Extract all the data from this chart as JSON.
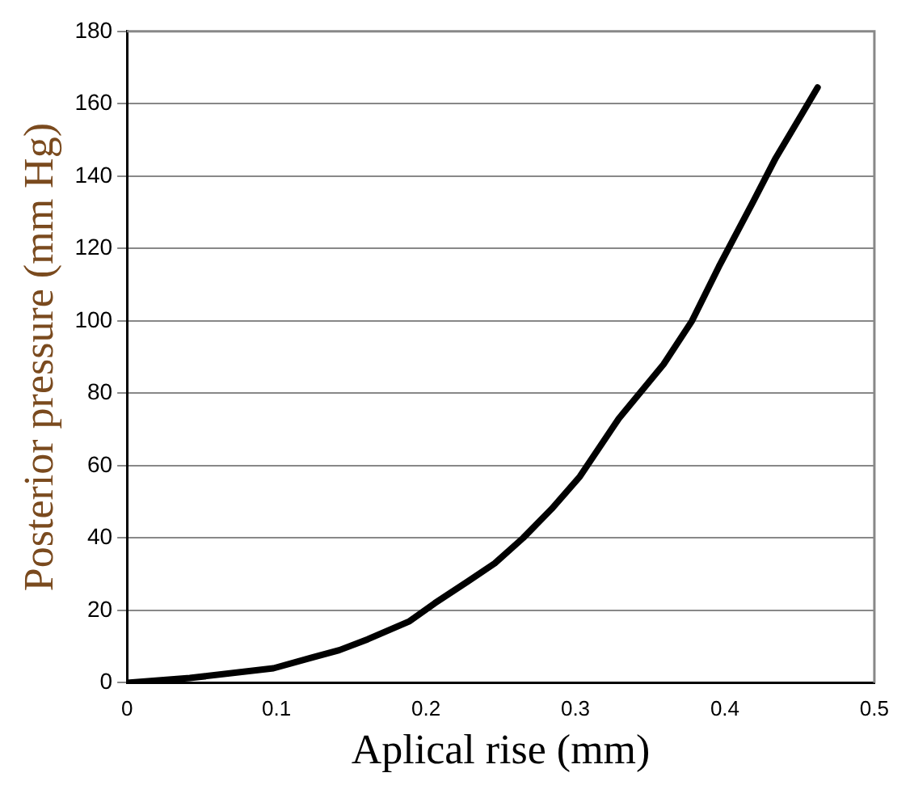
{
  "chart_data": {
    "type": "line",
    "xlabel": "Aplical rise (mm)",
    "ylabel": "Posterior pressure (mm Hg)",
    "series": [
      {
        "color": "#000000",
        "x": [
          0,
          0.042,
          0.098,
          0.124,
          0.142,
          0.161,
          0.189,
          0.206,
          0.228,
          0.246,
          0.265,
          0.284,
          0.303,
          0.329,
          0.359,
          0.378,
          0.396,
          0.419,
          0.434,
          0.452,
          0.462
        ],
        "values": [
          0,
          1.3,
          4,
          7,
          9,
          12,
          17,
          22,
          28,
          33,
          40,
          48,
          57,
          73,
          88,
          100,
          115,
          133,
          145,
          157.5,
          164.5
        ]
      }
    ],
    "xlim": [
      0,
      0.5
    ],
    "xticks": [
      0,
      0.1,
      0.2,
      0.3,
      0.4,
      0.5
    ],
    "ylim": [
      0,
      180
    ],
    "yticks": [
      0,
      20,
      40,
      60,
      80,
      100,
      120,
      140,
      160,
      180
    ],
    "grid": "y",
    "legend": false,
    "marker": "none",
    "line_style": "solid"
  }
}
